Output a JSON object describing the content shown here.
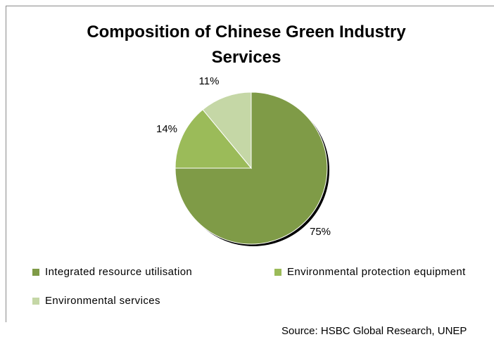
{
  "chart_data": {
    "type": "pie",
    "title_line1": "Composition of Chinese Green Industry",
    "title_line2": "Services",
    "slices": [
      {
        "label": "Integrated resource utilisation",
        "value": 75,
        "display": "75%",
        "color": "#7f9b47"
      },
      {
        "label": "Environmental protection equipment",
        "value": 14,
        "display": "14%",
        "color": "#9bbb59"
      },
      {
        "label": "Environmental services",
        "value": 11,
        "display": "11%",
        "color": "#c5d7a6"
      }
    ],
    "legend_position": "bottom"
  },
  "source": "Source: HSBC Global Research, UNEP"
}
